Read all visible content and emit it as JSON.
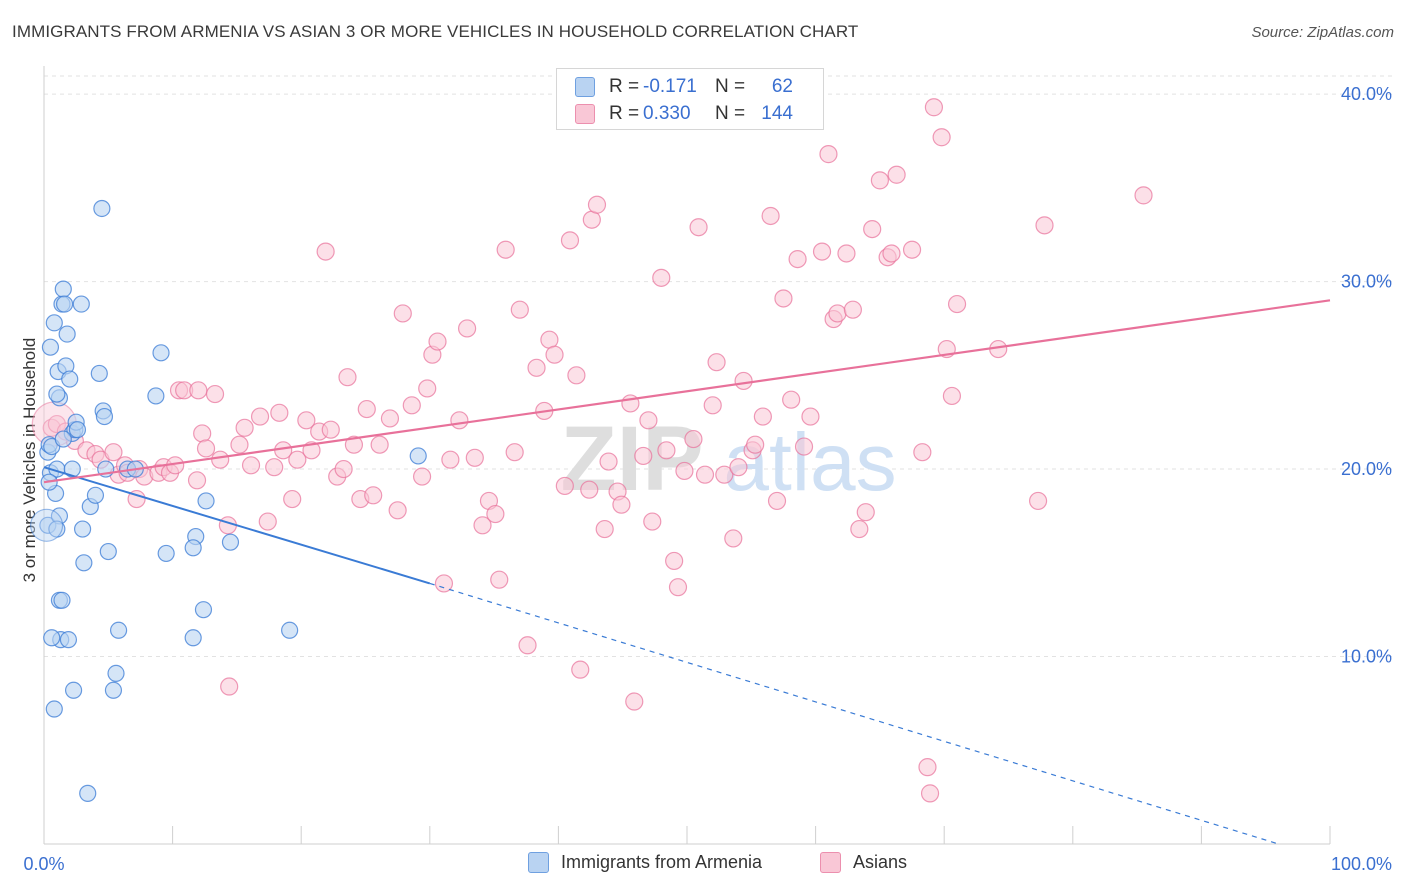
{
  "title": "IMMIGRANTS FROM ARMENIA VS ASIAN 3 OR MORE VEHICLES IN HOUSEHOLD CORRELATION CHART",
  "source": "Source: ZipAtlas.com",
  "watermark": {
    "zip": "ZIP",
    "atlas": "atlas"
  },
  "legend": {
    "r_label": "R =",
    "n_label": "N =",
    "series1": {
      "r": "-0.171",
      "n": "62"
    },
    "series2": {
      "r": "0.330",
      "n": "144"
    }
  },
  "colors": {
    "blue": "#3a7bd5",
    "blue_fill": "#b9d3f2",
    "pink": "#e8719a",
    "pink_fill": "#f9c7d6",
    "axis_text": "#3a6fd0"
  },
  "chart_data": {
    "type": "scatter",
    "title": "IMMIGRANTS FROM ARMENIA VS ASIAN 3 OR MORE VEHICLES IN HOUSEHOLD CORRELATION CHART",
    "xlabel": "",
    "ylabel": "3 or more Vehicles in Household",
    "xlim": [
      0,
      100
    ],
    "ylim": [
      0,
      41.5
    ],
    "x_tick_labels": [
      "0.0%",
      "100.0%"
    ],
    "y_ticks": [
      10,
      20,
      30,
      40
    ],
    "y_tick_labels": [
      "10.0%",
      "20.0%",
      "30.0%",
      "40.0%"
    ],
    "grid": true,
    "series": [
      {
        "name": "Immigrants from Armenia",
        "r": -0.171,
        "n": 62,
        "trend": {
          "x0": 0,
          "y0": 20.1,
          "x1": 30,
          "y1": 13.9,
          "dashed_to_x": 96,
          "dashed_to_y": 0
        },
        "points": [
          [
            0.3,
            20.9
          ],
          [
            0.4,
            21.3
          ],
          [
            0.5,
            19.8
          ],
          [
            0.3,
            17.0
          ],
          [
            0.6,
            21.2
          ],
          [
            0.5,
            26.5
          ],
          [
            0.8,
            27.8
          ],
          [
            1.0,
            20.0
          ],
          [
            0.9,
            18.7
          ],
          [
            1.2,
            23.8
          ],
          [
            1.2,
            17.5
          ],
          [
            1.0,
            16.8
          ],
          [
            1.1,
            25.2
          ],
          [
            1.4,
            28.8
          ],
          [
            1.5,
            29.6
          ],
          [
            1.6,
            28.8
          ],
          [
            1.7,
            25.5
          ],
          [
            1.8,
            27.2
          ],
          [
            2.0,
            24.8
          ],
          [
            2.2,
            21.9
          ],
          [
            2.4,
            22.1
          ],
          [
            2.5,
            22.5
          ],
          [
            2.6,
            22.1
          ],
          [
            2.9,
            28.8
          ],
          [
            1.2,
            13.0
          ],
          [
            1.4,
            13.0
          ],
          [
            1.3,
            10.9
          ],
          [
            0.6,
            11.0
          ],
          [
            1.9,
            10.9
          ],
          [
            2.3,
            8.2
          ],
          [
            0.8,
            7.2
          ],
          [
            3.0,
            16.8
          ],
          [
            3.1,
            15.0
          ],
          [
            3.6,
            18.0
          ],
          [
            4.0,
            18.6
          ],
          [
            4.3,
            25.1
          ],
          [
            4.5,
            33.9
          ],
          [
            4.6,
            23.1
          ],
          [
            4.7,
            22.8
          ],
          [
            4.8,
            20.0
          ],
          [
            5.0,
            15.6
          ],
          [
            5.4,
            8.2
          ],
          [
            5.6,
            9.1
          ],
          [
            5.8,
            11.4
          ],
          [
            6.5,
            20.0
          ],
          [
            7.1,
            20.0
          ],
          [
            8.7,
            23.9
          ],
          [
            9.1,
            26.2
          ],
          [
            9.5,
            15.5
          ],
          [
            11.8,
            16.4
          ],
          [
            11.6,
            15.8
          ],
          [
            11.6,
            11.0
          ],
          [
            12.4,
            12.5
          ],
          [
            12.6,
            18.3
          ],
          [
            14.5,
            16.1
          ],
          [
            3.4,
            2.7
          ],
          [
            19.1,
            11.4
          ],
          [
            29.1,
            20.7
          ],
          [
            0.4,
            19.3
          ],
          [
            1.0,
            24.0
          ],
          [
            1.5,
            21.6
          ],
          [
            2.2,
            20.0
          ]
        ]
      },
      {
        "name": "Asians",
        "r": 0.33,
        "n": 144,
        "trend": {
          "x0": 0,
          "y0": 19.3,
          "x1": 100,
          "y1": 29.0
        },
        "points": [
          [
            0.6,
            22.2
          ],
          [
            1.0,
            22.4
          ],
          [
            1.7,
            22.0
          ],
          [
            2.4,
            21.5
          ],
          [
            3.3,
            21.0
          ],
          [
            4.0,
            20.8
          ],
          [
            4.4,
            20.5
          ],
          [
            5.4,
            20.9
          ],
          [
            5.8,
            19.7
          ],
          [
            6.3,
            20.2
          ],
          [
            6.5,
            19.8
          ],
          [
            7.2,
            18.4
          ],
          [
            7.4,
            20.0
          ],
          [
            7.8,
            19.6
          ],
          [
            8.9,
            19.8
          ],
          [
            9.3,
            20.1
          ],
          [
            9.8,
            19.8
          ],
          [
            10.2,
            20.2
          ],
          [
            10.5,
            24.2
          ],
          [
            10.9,
            24.2
          ],
          [
            11.9,
            19.4
          ],
          [
            12.3,
            21.9
          ],
          [
            12.6,
            21.1
          ],
          [
            13.3,
            24.0
          ],
          [
            13.7,
            20.5
          ],
          [
            14.3,
            17.0
          ],
          [
            15.2,
            21.3
          ],
          [
            15.6,
            22.2
          ],
          [
            16.1,
            20.2
          ],
          [
            16.8,
            22.8
          ],
          [
            17.4,
            17.2
          ],
          [
            17.9,
            20.1
          ],
          [
            18.3,
            23.0
          ],
          [
            18.6,
            21.0
          ],
          [
            19.3,
            18.4
          ],
          [
            19.7,
            20.5
          ],
          [
            20.4,
            22.6
          ],
          [
            20.8,
            21.0
          ],
          [
            21.4,
            22.0
          ],
          [
            21.9,
            31.6
          ],
          [
            22.3,
            22.1
          ],
          [
            22.8,
            19.6
          ],
          [
            23.3,
            20.0
          ],
          [
            23.6,
            24.9
          ],
          [
            24.1,
            21.3
          ],
          [
            24.6,
            18.4
          ],
          [
            25.1,
            23.2
          ],
          [
            25.6,
            18.6
          ],
          [
            26.1,
            21.3
          ],
          [
            26.9,
            22.7
          ],
          [
            27.5,
            17.8
          ],
          [
            27.9,
            28.3
          ],
          [
            28.6,
            23.4
          ],
          [
            29.4,
            19.6
          ],
          [
            29.8,
            24.3
          ],
          [
            30.2,
            26.1
          ],
          [
            30.6,
            26.8
          ],
          [
            31.1,
            13.9
          ],
          [
            31.6,
            20.5
          ],
          [
            32.3,
            22.6
          ],
          [
            32.9,
            27.5
          ],
          [
            33.5,
            20.6
          ],
          [
            34.1,
            17.0
          ],
          [
            34.6,
            18.3
          ],
          [
            35.1,
            17.6
          ],
          [
            35.4,
            14.1
          ],
          [
            35.9,
            31.7
          ],
          [
            36.6,
            20.9
          ],
          [
            37.0,
            28.5
          ],
          [
            37.6,
            10.6
          ],
          [
            38.3,
            25.4
          ],
          [
            38.9,
            23.1
          ],
          [
            39.3,
            26.9
          ],
          [
            39.7,
            26.1
          ],
          [
            40.5,
            19.1
          ],
          [
            40.9,
            32.2
          ],
          [
            41.4,
            25.0
          ],
          [
            41.7,
            9.3
          ],
          [
            42.4,
            18.9
          ],
          [
            42.6,
            33.3
          ],
          [
            43.0,
            34.1
          ],
          [
            43.6,
            16.8
          ],
          [
            43.9,
            20.4
          ],
          [
            44.6,
            18.8
          ],
          [
            44.9,
            18.1
          ],
          [
            45.6,
            23.5
          ],
          [
            45.9,
            7.6
          ],
          [
            46.6,
            20.7
          ],
          [
            47.0,
            22.6
          ],
          [
            47.3,
            17.2
          ],
          [
            48.0,
            30.2
          ],
          [
            48.4,
            21.0
          ],
          [
            49.0,
            15.1
          ],
          [
            49.3,
            13.7
          ],
          [
            49.8,
            19.9
          ],
          [
            50.5,
            21.6
          ],
          [
            50.9,
            32.9
          ],
          [
            51.4,
            19.7
          ],
          [
            52.0,
            23.4
          ],
          [
            52.3,
            25.7
          ],
          [
            52.9,
            19.7
          ],
          [
            53.6,
            16.3
          ],
          [
            54.0,
            20.1
          ],
          [
            54.4,
            24.7
          ],
          [
            55.1,
            21.0
          ],
          [
            55.3,
            21.3
          ],
          [
            55.9,
            22.8
          ],
          [
            56.5,
            33.5
          ],
          [
            57.0,
            18.3
          ],
          [
            57.5,
            29.1
          ],
          [
            58.1,
            23.7
          ],
          [
            58.6,
            31.2
          ],
          [
            59.1,
            21.2
          ],
          [
            59.6,
            22.8
          ],
          [
            60.5,
            31.6
          ],
          [
            61.0,
            36.8
          ],
          [
            61.4,
            28.0
          ],
          [
            61.7,
            28.3
          ],
          [
            62.4,
            31.5
          ],
          [
            62.9,
            28.5
          ],
          [
            63.4,
            16.8
          ],
          [
            63.9,
            17.7
          ],
          [
            64.4,
            32.8
          ],
          [
            65.0,
            35.4
          ],
          [
            65.6,
            31.3
          ],
          [
            65.9,
            31.5
          ],
          [
            66.3,
            35.7
          ],
          [
            67.5,
            31.7
          ],
          [
            68.3,
            20.9
          ],
          [
            68.7,
            4.1
          ],
          [
            68.9,
            2.7
          ],
          [
            69.2,
            39.3
          ],
          [
            69.8,
            37.7
          ],
          [
            70.2,
            26.4
          ],
          [
            70.6,
            23.9
          ],
          [
            71.0,
            28.8
          ],
          [
            74.2,
            26.4
          ],
          [
            77.3,
            18.3
          ],
          [
            77.8,
            33.0
          ],
          [
            85.5,
            34.6
          ],
          [
            12.0,
            24.2
          ],
          [
            14.4,
            8.4
          ]
        ]
      }
    ]
  }
}
